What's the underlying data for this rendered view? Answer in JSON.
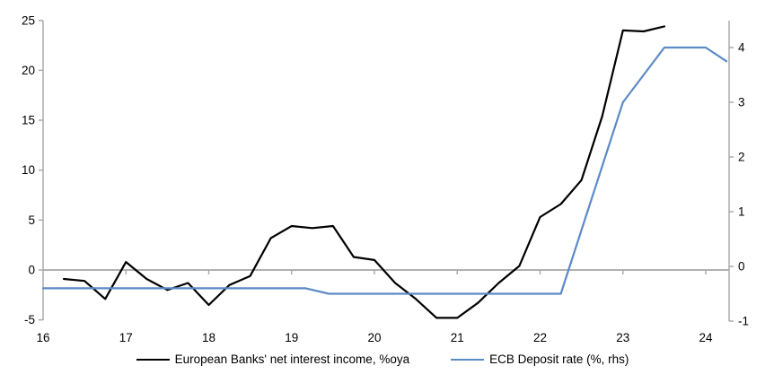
{
  "chart_data": {
    "type": "line",
    "title": "",
    "x_axis": {
      "ticks": [
        16,
        17,
        18,
        19,
        20,
        21,
        22,
        23,
        24
      ],
      "range": [
        16,
        24.26
      ]
    },
    "left_axis": {
      "ticks": [
        25,
        20,
        15,
        10,
        5,
        0,
        -5
      ],
      "range": [
        -5,
        25
      ]
    },
    "right_axis": {
      "ticks": [
        4,
        3,
        2,
        1,
        0,
        -1
      ],
      "range": [
        -1,
        4
      ]
    },
    "grid": "zero-line-only",
    "legend_position": "bottom",
    "series": [
      {
        "id": "european-banks-nii",
        "name": "European Banks' net interest income, %oya",
        "axis": "left",
        "color": "#000000",
        "x": [
          16.25,
          16.5,
          16.75,
          17,
          17.25,
          17.5,
          17.75,
          18,
          18.25,
          18.5,
          18.75,
          19,
          19.25,
          19.5,
          19.75,
          20,
          20.25,
          20.5,
          20.75,
          21,
          21.25,
          21.5,
          21.75,
          22,
          22.25,
          22.5,
          22.75,
          23,
          23.25,
          23.5
        ],
        "values": [
          -0.9,
          -1.1,
          -2.9,
          0.8,
          -0.9,
          -2.0,
          -1.3,
          -3.5,
          -1.5,
          -0.6,
          3.2,
          4.4,
          4.2,
          4.4,
          1.3,
          1.0,
          -1.3,
          -2.9,
          -4.8,
          -4.8,
          -3.3,
          -1.3,
          0.4,
          5.3,
          6.6,
          9.0,
          15.4,
          24.0,
          23.9,
          24.4
        ]
      },
      {
        "id": "ecb-deposit-rate",
        "name": "ECB Deposit rate (%, rhs)",
        "axis": "right",
        "color": "#5b8ac6",
        "x": [
          16,
          19.17,
          19.45,
          22.25,
          23,
          23.5,
          24,
          24.25
        ],
        "values": [
          -0.4,
          -0.4,
          -0.5,
          -0.5,
          3.0,
          4.0,
          4.0,
          3.75
        ]
      }
    ]
  },
  "colors": {
    "axis": "#a6a6a6",
    "zero_line": "#a6a6a6",
    "background": "#ffffff",
    "text": "#000000"
  }
}
